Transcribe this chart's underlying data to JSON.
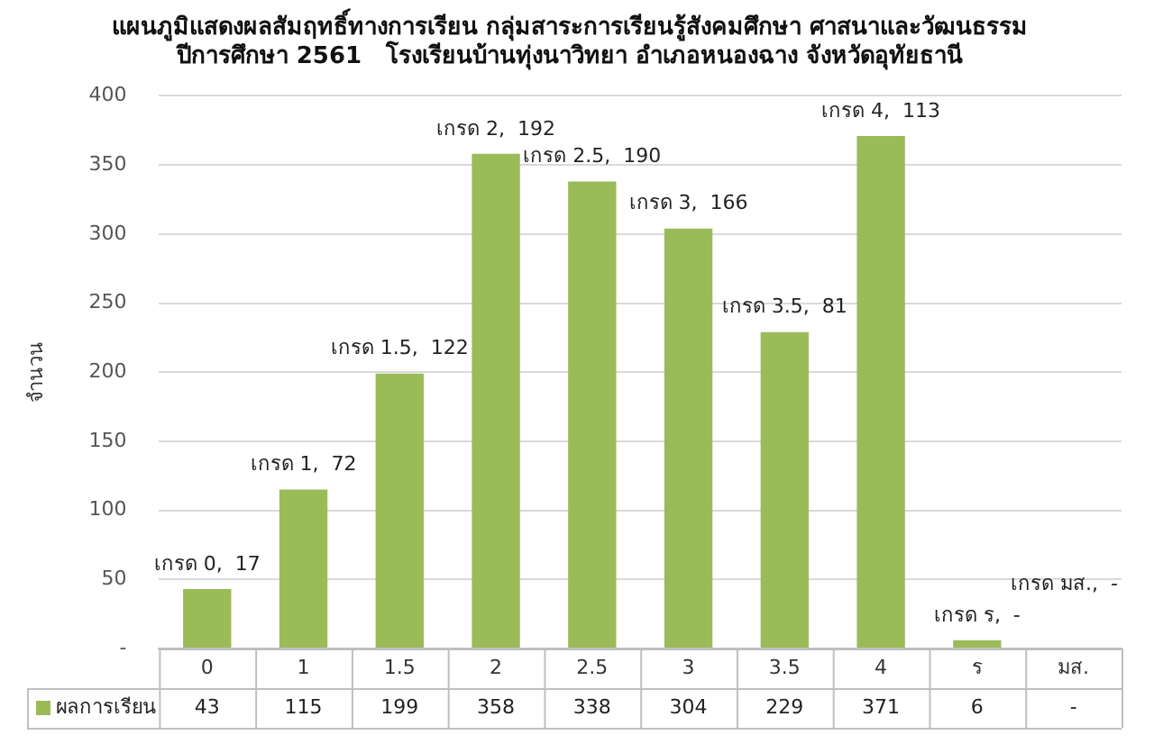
{
  "chart_data": {
    "type": "bar",
    "title": [
      "แผนภูมิแสดงผลสัมฤทธิ์ทางการเรียน กลุ่มสาระการเรียนรู้สังคมศึกษา ศาสนาและวัฒนธรรม",
      "ปีการศึกษา 2561   โรงเรียนบ้านทุ่งนาวิทยา อำเภอหนองฉาง จังหวัดอุทัยธานี"
    ],
    "ylabel": "จำนวน",
    "categories": [
      "0",
      "1",
      "1.5",
      "2",
      "2.5",
      "3",
      "3.5",
      "4",
      "ร",
      "มส."
    ],
    "series": [
      {
        "name": "ผลการเรียน",
        "color": "#9bbb59",
        "values": [
          43,
          115,
          199,
          358,
          338,
          304,
          229,
          371,
          6,
          null
        ],
        "value_labels": [
          "43",
          "115",
          "199",
          "358",
          "338",
          "304",
          "229",
          "371",
          "6",
          "-"
        ]
      }
    ],
    "ylim": [
      0,
      400
    ],
    "yticks": [
      {
        "value": 0,
        "label": "-"
      },
      50,
      100,
      150,
      200,
      250,
      300,
      350,
      400
    ],
    "grid": "y",
    "legend": "bottom",
    "annotations": [
      {
        "text": "เกรด 0,  17",
        "x": "0",
        "y": 43
      },
      {
        "text": "เกรด 1,  72",
        "x": "1",
        "y": 115
      },
      {
        "text": "เกรด 1.5,  122",
        "x": "1.5",
        "y": 199
      },
      {
        "text": "เกรด 2,  192",
        "x": "2",
        "y": 358
      },
      {
        "text": "เกรด 2.5,  190",
        "x": "2.5",
        "y": 338
      },
      {
        "text": "เกรด 3,  166",
        "x": "3",
        "y": 304
      },
      {
        "text": "เกรด 3.5,  81",
        "x": "3.5",
        "y": 229
      },
      {
        "text": "เกรด 4,  113",
        "x": "4",
        "y": 371
      },
      {
        "text": "เกรด ร,  -",
        "x": "ร",
        "y": 6
      },
      "เกรด มส.,  -"
    ]
  }
}
